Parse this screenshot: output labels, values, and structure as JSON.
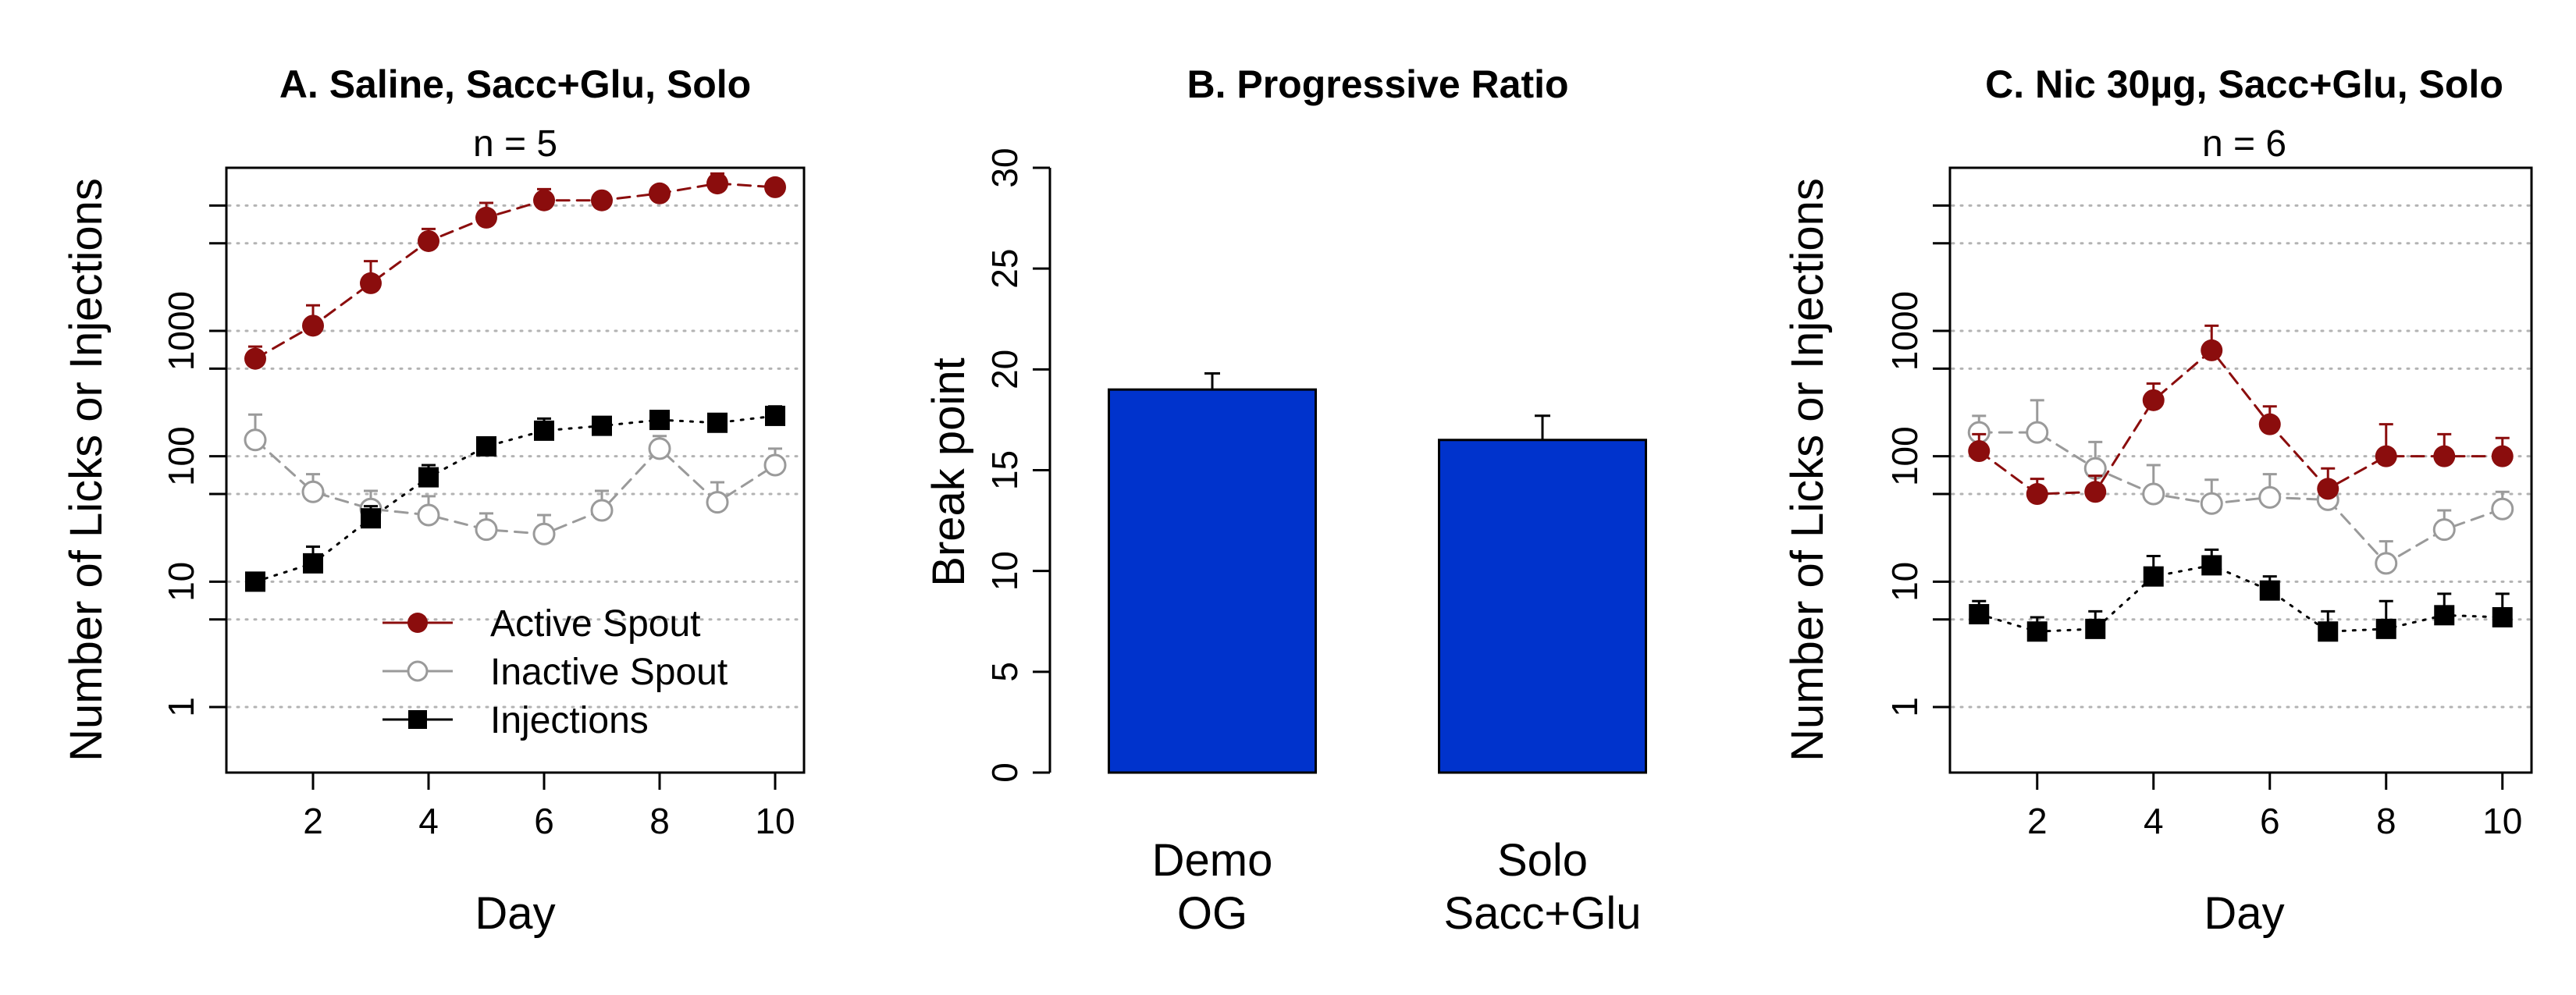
{
  "chart_data": [
    {
      "type": "line",
      "title": "A. Saline, Sacc+Glu, Solo",
      "subtitle": "n = 5",
      "xlabel": "Day",
      "ylabel": "Number of Licks or Injections",
      "yscale": "log",
      "xlim": [
        0.5,
        10.5
      ],
      "ylim": [
        0.3,
        20000
      ],
      "xticks": [
        2,
        4,
        6,
        8,
        10
      ],
      "yticks": [
        1,
        10,
        100,
        1000
      ],
      "gridlines": [
        1,
        5,
        10,
        50,
        100,
        500,
        1000,
        5000,
        10000
      ],
      "legend": {
        "position": "bottom-right",
        "items": [
          "Active Spout",
          "Inactive Spout",
          "Injections"
        ]
      },
      "x": [
        1,
        2,
        3,
        4,
        5,
        6,
        7,
        8,
        9,
        10
      ],
      "series": [
        {
          "name": "Active Spout",
          "color": "#8b0d0d",
          "marker": "filled-circle",
          "line": "dashed",
          "values": [
            600,
            1100,
            2400,
            5200,
            8000,
            11000,
            11000,
            12500,
            15000,
            14000
          ],
          "err": [
            750,
            1600,
            3600,
            6500,
            10500,
            13500,
            12000,
            13500,
            18000,
            16000
          ]
        },
        {
          "name": "Inactive Spout",
          "color": "#9a9a9a",
          "marker": "open-circle",
          "line": "dashed",
          "values": [
            135,
            52,
            38,
            34,
            26,
            24,
            37,
            115,
            43,
            85
          ],
          "err": [
            215,
            72,
            53,
            48,
            35,
            34,
            53,
            145,
            62,
            115
          ]
        },
        {
          "name": "Injections",
          "color": "#000000",
          "marker": "filled-square",
          "line": "dotted",
          "values": [
            10,
            14,
            32,
            68,
            120,
            160,
            175,
            195,
            185,
            210
          ],
          "err": [
            11,
            19,
            40,
            85,
            140,
            200,
            200,
            215,
            200,
            250
          ]
        }
      ]
    },
    {
      "type": "bar",
      "title": "B. Progressive Ratio",
      "ylabel": "Break point",
      "ylim": [
        0,
        30
      ],
      "yticks": [
        0,
        5,
        10,
        15,
        20,
        25,
        30
      ],
      "bar_color": "#0033cc",
      "categories": [
        [
          "Demo",
          "OG"
        ],
        [
          "Solo",
          "Sacc+Glu"
        ]
      ],
      "values": [
        19,
        16.5
      ],
      "err": [
        19.8,
        17.7
      ]
    },
    {
      "type": "line",
      "title": "C. Nic 30µg, Sacc+Glu, Solo",
      "subtitle": "n = 6",
      "xlabel": "Day",
      "ylabel": "Number of Licks or Injections",
      "yscale": "log",
      "xlim": [
        0.5,
        10.5
      ],
      "ylim": [
        0.3,
        20000
      ],
      "xticks": [
        2,
        4,
        6,
        8,
        10
      ],
      "yticks": [
        1,
        10,
        100,
        1000
      ],
      "gridlines": [
        1,
        5,
        10,
        50,
        100,
        500,
        1000,
        5000,
        10000
      ],
      "x": [
        1,
        2,
        3,
        4,
        5,
        6,
        7,
        8,
        9,
        10
      ],
      "series": [
        {
          "name": "Inactive Spout",
          "color": "#9a9a9a",
          "marker": "open-circle",
          "line": "dashed",
          "values": [
            155,
            155,
            80,
            50,
            42,
            47,
            45,
            14,
            26,
            38
          ],
          "err": [
            210,
            280,
            130,
            85,
            65,
            72,
            58,
            21,
            37,
            52
          ]
        },
        {
          "name": "Active Spout",
          "color": "#8b0d0d",
          "marker": "filled-circle",
          "line": "dashed",
          "values": [
            110,
            50,
            52,
            280,
            700,
            180,
            55,
            100,
            100,
            100
          ],
          "err": [
            150,
            66,
            70,
            380,
            1100,
            250,
            80,
            180,
            150,
            140
          ]
        },
        {
          "name": "Injections",
          "color": "#000000",
          "marker": "filled-square",
          "line": "dotted",
          "values": [
            5.5,
            4,
            4.2,
            11,
            13.5,
            8.5,
            4,
            4.2,
            5.4,
            5.2
          ],
          "err": [
            7,
            5.2,
            5.8,
            16,
            18,
            11,
            5.8,
            7,
            8,
            8
          ]
        }
      ]
    }
  ]
}
